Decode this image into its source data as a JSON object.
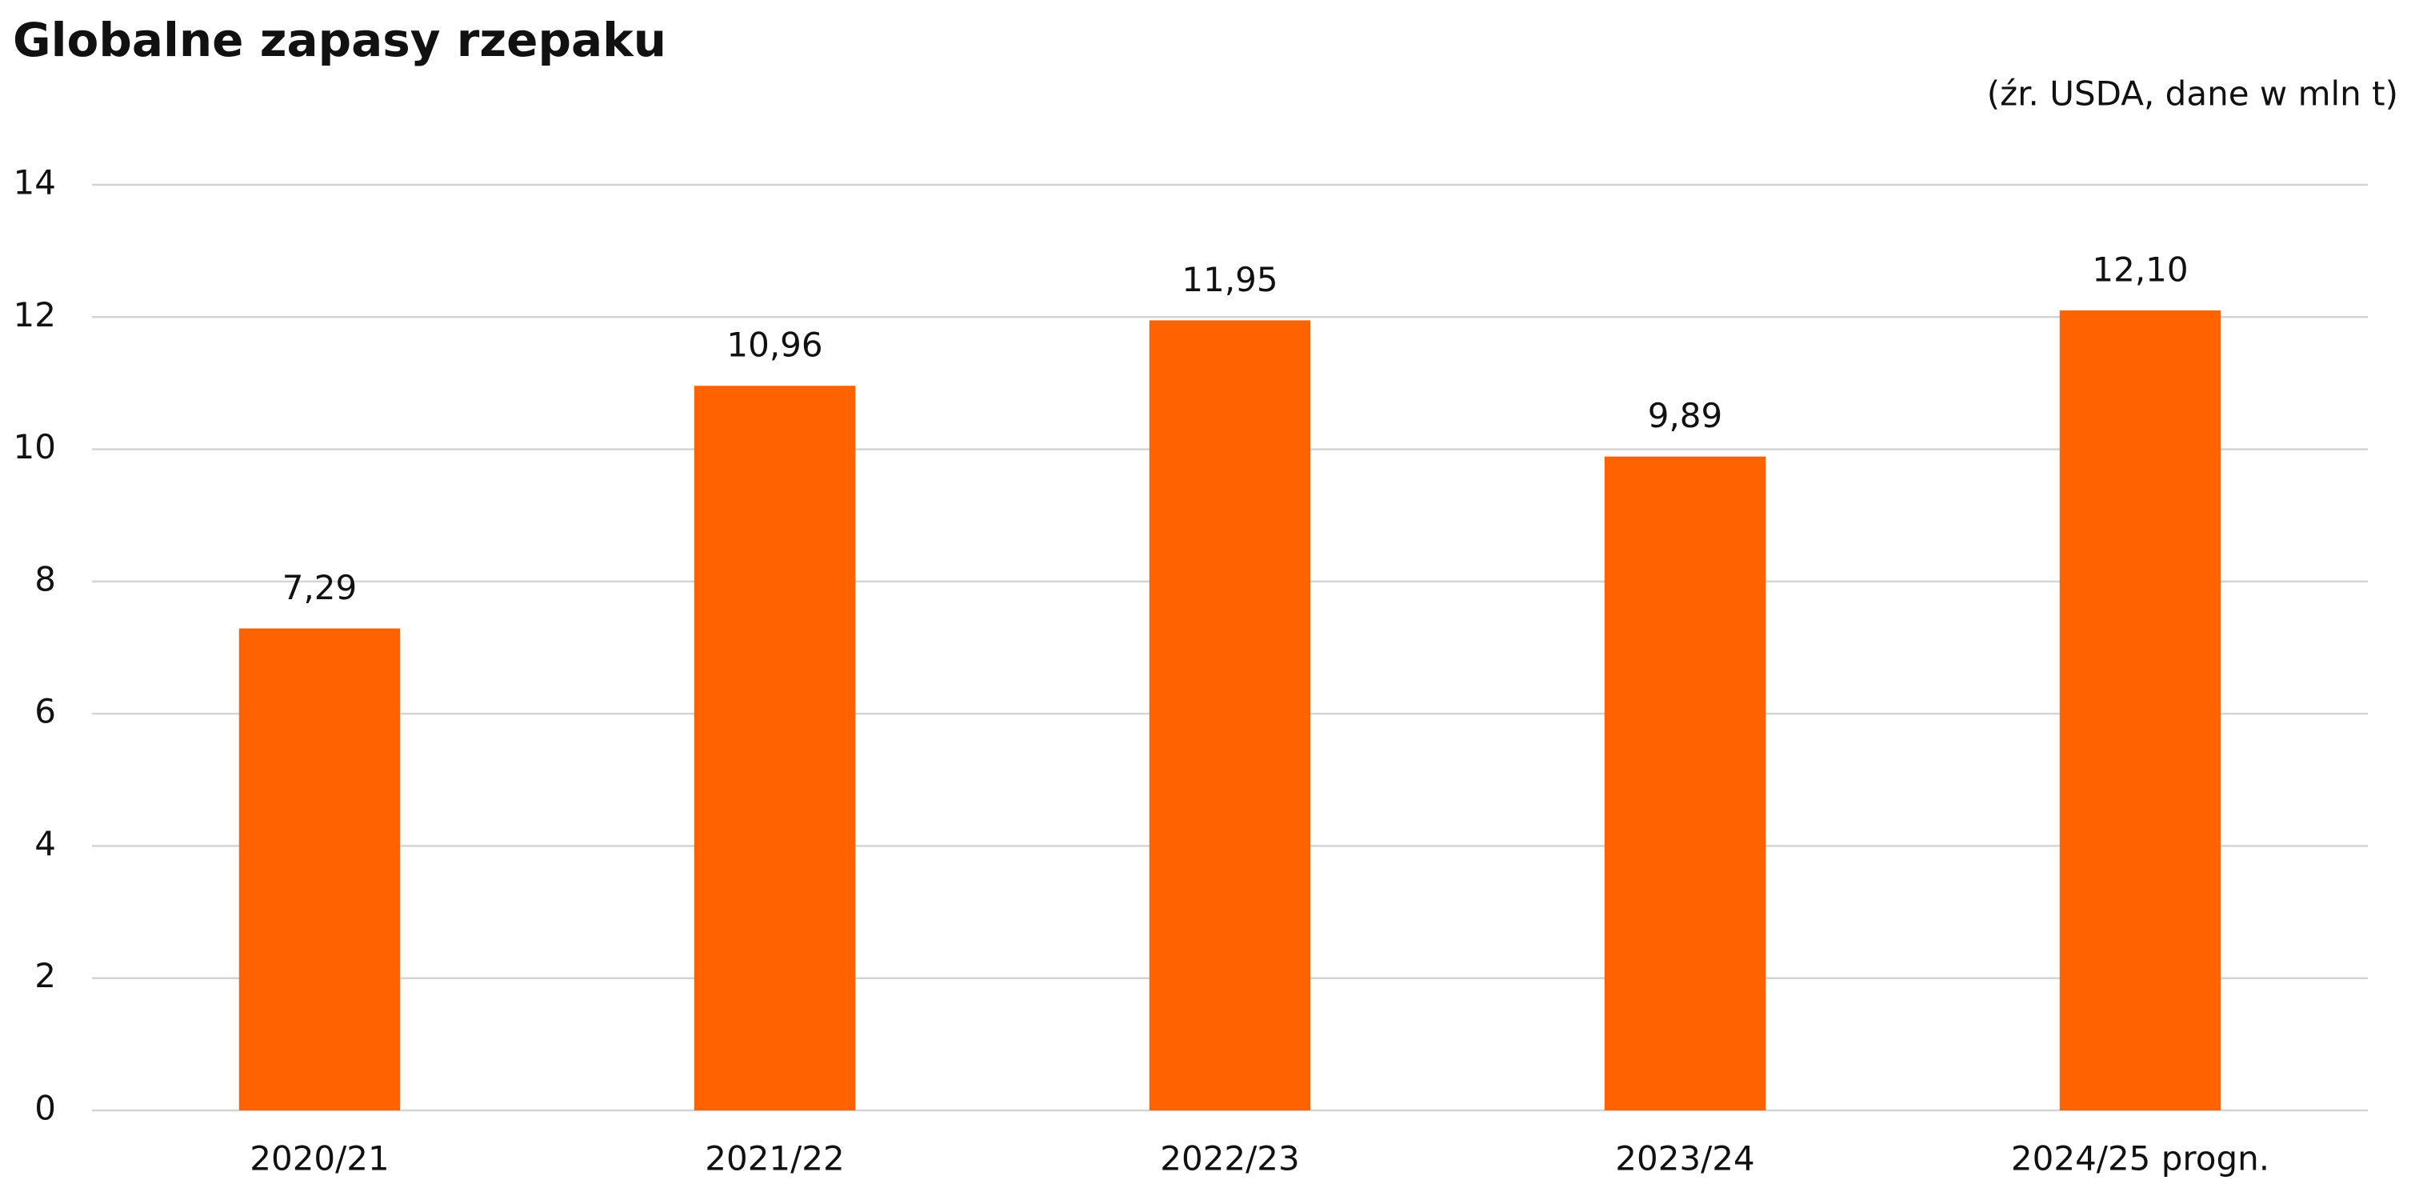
{
  "chart_data": {
    "type": "bar",
    "title": "Globalne zapasy rzepaku",
    "subtitle": "(źr. USDA, dane w mln t)",
    "categories": [
      "2020/21",
      "2021/22",
      "2022/23",
      "2023/24",
      "2024/25 progn."
    ],
    "values": [
      7.29,
      10.96,
      11.95,
      9.89,
      12.1
    ],
    "value_labels": [
      "7,29",
      "10,96",
      "11,95",
      "9,89",
      "12,10"
    ],
    "color": "#ff6200",
    "ylim": [
      0,
      14
    ],
    "yticks": [
      0,
      2,
      4,
      6,
      8,
      10,
      12,
      14
    ],
    "grid": true
  }
}
